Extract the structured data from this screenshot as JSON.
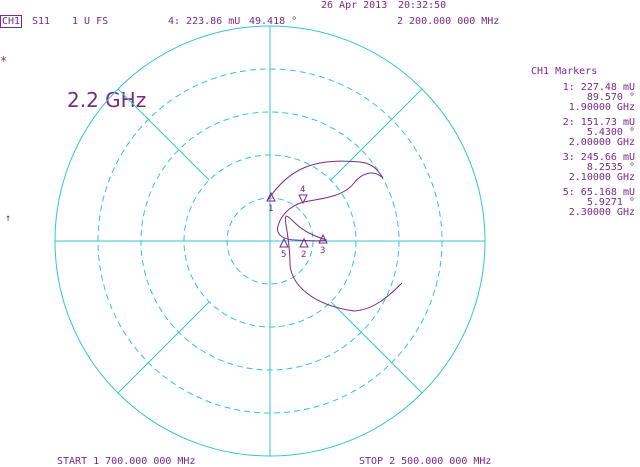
{
  "header": {
    "date": "26 Apr 2013",
    "time": "20:32:50",
    "channel": "CH1",
    "param": "S11",
    "format": "1 U FS",
    "active_marker": "4: 223.86 mU",
    "active_phase": "49.418 °",
    "active_freq": "2 200.000 000 MHz"
  },
  "left_symbols": {
    "star": "*",
    "arrow": "↑"
  },
  "annotation": "2.2 GHz",
  "markers_panel": {
    "title": "CH1 Markers",
    "items": [
      {
        "id": "1",
        "mag": "1: 227.48 mU",
        "phase": "89.570 °",
        "freq": "1.90000 GHz"
      },
      {
        "id": "2",
        "mag": "2: 151.73 mU",
        "phase": "5.4300 °",
        "freq": "2.00000 GHz"
      },
      {
        "id": "3",
        "mag": "3: 245.66 mU",
        "phase": "8.2535 °",
        "freq": "2.10000 GHz"
      },
      {
        "id": "5",
        "mag": "5: 65.168 mU",
        "phase": "5.9271 °",
        "freq": "2.30000 GHz"
      }
    ]
  },
  "footer": {
    "start": "START 1 700.000 000 MHz",
    "stop": "STOP 2 500.000 000 MHz"
  },
  "plot_markers": [
    {
      "label": "1",
      "kind": "up"
    },
    {
      "label": "4",
      "kind": "down"
    },
    {
      "label": "5",
      "kind": "up"
    },
    {
      "label": "2",
      "kind": "up"
    },
    {
      "label": "3",
      "kind": "up"
    }
  ],
  "colors": {
    "grid": "#34c6cc",
    "trace": "#7a2a8a",
    "text": "#7a2a8a"
  }
}
